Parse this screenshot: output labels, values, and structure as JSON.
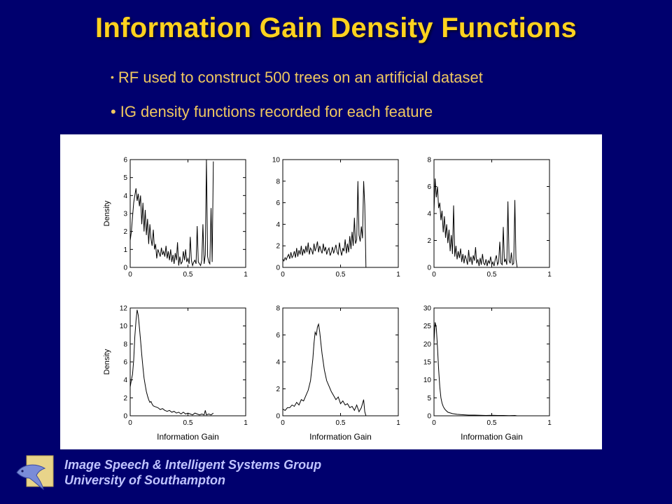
{
  "slide": {
    "title": "Information Gain Density Functions",
    "bullets": [
      "RF used to construct 500 trees on an artificial dataset",
      "IG density functions recorded for each feature"
    ],
    "bullet_symbol": "•",
    "footer": {
      "group": "Image Speech & Intelligent Systems Group",
      "university": "University of Southampton"
    },
    "colors": {
      "background": "#00006e",
      "title": "#ffd21e",
      "bullets": "#f0c860",
      "footer_text": "#c0c4ff",
      "plot_line": "#000000"
    }
  },
  "chart_data": [
    {
      "type": "line",
      "row": 1,
      "col": 1,
      "xlabel": "",
      "ylabel": "Density",
      "xlim": [
        0,
        1
      ],
      "ylim": [
        0,
        6
      ],
      "xticks": [
        "0",
        "0.5",
        "1"
      ],
      "yticks": [
        "0",
        "1",
        "2",
        "3",
        "4",
        "5",
        "6"
      ],
      "x": [
        0,
        0.01,
        0.02,
        0.03,
        0.04,
        0.05,
        0.06,
        0.07,
        0.08,
        0.09,
        0.1,
        0.11,
        0.12,
        0.13,
        0.14,
        0.15,
        0.16,
        0.17,
        0.18,
        0.19,
        0.2,
        0.21,
        0.22,
        0.23,
        0.24,
        0.25,
        0.26,
        0.27,
        0.28,
        0.29,
        0.3,
        0.31,
        0.32,
        0.33,
        0.34,
        0.35,
        0.36,
        0.37,
        0.38,
        0.39,
        0.4,
        0.41,
        0.42,
        0.43,
        0.44,
        0.45,
        0.46,
        0.47,
        0.48,
        0.49,
        0.5,
        0.51,
        0.52,
        0.53,
        0.54,
        0.55,
        0.56,
        0.57,
        0.58,
        0.59,
        0.6,
        0.61,
        0.62,
        0.63,
        0.64,
        0.65,
        0.66,
        0.67,
        0.68,
        0.69,
        0.7,
        0.71,
        0.72
      ],
      "y": [
        1.5,
        2.0,
        2.8,
        3.6,
        4.0,
        4.4,
        3.7,
        4.1,
        3.4,
        4.0,
        2.4,
        3.6,
        2.0,
        3.2,
        1.8,
        2.7,
        1.3,
        2.4,
        1.6,
        1.2,
        2.1,
        1.0,
        1.3,
        0.5,
        1.0,
        0.8,
        0.6,
        1.1,
        0.7,
        0.9,
        0.6,
        1.2,
        0.5,
        0.9,
        0.4,
        1.0,
        0.3,
        0.7,
        0.2,
        0.8,
        0.4,
        1.4,
        0.1,
        0.6,
        0.2,
        0.3,
        0.9,
        0.4,
        1.0,
        0.3,
        0.5,
        0.2,
        1.7,
        0.4,
        0.1,
        0.3,
        0.4,
        0.2,
        2.3,
        0.3,
        0.2,
        0.1,
        0.4,
        2.4,
        0.2,
        0.7,
        6.0,
        0.6,
        0.3,
        0.2,
        3.3,
        0.3,
        5.9
      ]
    },
    {
      "type": "line",
      "row": 1,
      "col": 2,
      "xlabel": "",
      "ylabel": "",
      "xlim": [
        0,
        1
      ],
      "ylim": [
        0,
        10
      ],
      "xticks": [
        "0",
        "0.5",
        "1"
      ],
      "yticks": [
        "0",
        "2",
        "4",
        "6",
        "8",
        "10"
      ],
      "x": [
        0,
        0.01,
        0.02,
        0.03,
        0.04,
        0.05,
        0.06,
        0.07,
        0.08,
        0.09,
        0.1,
        0.11,
        0.12,
        0.13,
        0.14,
        0.15,
        0.16,
        0.17,
        0.18,
        0.19,
        0.2,
        0.21,
        0.22,
        0.23,
        0.24,
        0.25,
        0.26,
        0.27,
        0.28,
        0.29,
        0.3,
        0.31,
        0.32,
        0.33,
        0.34,
        0.35,
        0.36,
        0.37,
        0.38,
        0.39,
        0.4,
        0.41,
        0.42,
        0.43,
        0.44,
        0.45,
        0.46,
        0.47,
        0.48,
        0.49,
        0.5,
        0.51,
        0.52,
        0.53,
        0.54,
        0.55,
        0.56,
        0.57,
        0.58,
        0.59,
        0.6,
        0.61,
        0.62,
        0.63,
        0.64,
        0.65,
        0.66,
        0.67,
        0.68,
        0.69,
        0.7,
        0.71,
        0.72
      ],
      "y": [
        0.8,
        0.6,
        0.9,
        0.7,
        1.0,
        1.2,
        0.8,
        1.4,
        0.9,
        1.1,
        1.5,
        0.9,
        1.8,
        1.0,
        1.6,
        1.2,
        2.0,
        1.1,
        1.7,
        1.3,
        2.0,
        1.4,
        2.3,
        1.2,
        1.8,
        1.6,
        1.2,
        2.2,
        1.5,
        1.9,
        2.4,
        1.4,
        2.0,
        1.6,
        1.3,
        2.2,
        1.5,
        1.9,
        1.2,
        1.6,
        1.8,
        1.1,
        1.4,
        1.9,
        1.3,
        1.7,
        2.1,
        1.4,
        1.2,
        2.3,
        1.6,
        1.1,
        1.8,
        1.5,
        2.6,
        1.3,
        2.2,
        1.4,
        2.9,
        1.7,
        3.3,
        2.0,
        4.6,
        2.2,
        2.6,
        8.0,
        3.0,
        2.4,
        3.8,
        2.7,
        8.0,
        5.8,
        0.0
      ]
    },
    {
      "type": "line",
      "row": 1,
      "col": 3,
      "xlabel": "",
      "ylabel": "",
      "xlim": [
        0,
        1
      ],
      "ylim": [
        0,
        8
      ],
      "xticks": [
        "0",
        "0.5",
        "1"
      ],
      "yticks": [
        "0",
        "2",
        "4",
        "6",
        "8"
      ],
      "x": [
        0,
        0.01,
        0.02,
        0.03,
        0.04,
        0.05,
        0.06,
        0.07,
        0.08,
        0.09,
        0.1,
        0.11,
        0.12,
        0.13,
        0.14,
        0.15,
        0.16,
        0.17,
        0.18,
        0.19,
        0.2,
        0.21,
        0.22,
        0.23,
        0.24,
        0.25,
        0.26,
        0.27,
        0.28,
        0.29,
        0.3,
        0.31,
        0.32,
        0.33,
        0.34,
        0.35,
        0.36,
        0.37,
        0.38,
        0.39,
        0.4,
        0.41,
        0.42,
        0.43,
        0.44,
        0.45,
        0.46,
        0.47,
        0.48,
        0.49,
        0.5,
        0.51,
        0.52,
        0.53,
        0.54,
        0.55,
        0.56,
        0.57,
        0.58,
        0.59,
        0.6,
        0.61,
        0.62,
        0.63,
        0.64,
        0.65,
        0.66,
        0.67,
        0.68,
        0.69,
        0.7,
        0.71,
        0.72
      ],
      "y": [
        4.1,
        6.6,
        5.2,
        6.0,
        4.4,
        4.8,
        3.5,
        4.2,
        2.6,
        3.8,
        2.2,
        3.2,
        1.8,
        2.8,
        1.2,
        2.4,
        1.0,
        4.6,
        0.8,
        1.6,
        0.6,
        1.2,
        0.7,
        1.4,
        0.4,
        1.0,
        0.3,
        0.9,
        0.6,
        0.2,
        1.3,
        0.4,
        0.8,
        0.2,
        0.9,
        0.5,
        1.5,
        0.3,
        0.6,
        0.1,
        0.7,
        0.2,
        1.0,
        0.3,
        0.2,
        0.6,
        0.1,
        0.5,
        0.3,
        0.8,
        0.2,
        0.4,
        0.1,
        0.6,
        0.9,
        0.2,
        0.4,
        1.9,
        0.3,
        0.2,
        3.0,
        0.4,
        0.6,
        0.2,
        4.9,
        0.5,
        0.3,
        1.1,
        0.2,
        0.3,
        5.0,
        0.6,
        0.0
      ]
    },
    {
      "type": "line",
      "row": 2,
      "col": 1,
      "xlabel": "Information Gain",
      "ylabel": "Density",
      "xlim": [
        0,
        1
      ],
      "ylim": [
        0,
        12
      ],
      "xticks": [
        "0",
        "0.5",
        "1"
      ],
      "yticks": [
        "0",
        "2",
        "4",
        "6",
        "8",
        "10",
        "12"
      ],
      "x": [
        0,
        0.01,
        0.02,
        0.03,
        0.04,
        0.05,
        0.06,
        0.07,
        0.08,
        0.09,
        0.1,
        0.11,
        0.12,
        0.13,
        0.14,
        0.15,
        0.16,
        0.17,
        0.18,
        0.19,
        0.2,
        0.22,
        0.24,
        0.26,
        0.28,
        0.3,
        0.32,
        0.34,
        0.36,
        0.38,
        0.4,
        0.42,
        0.44,
        0.46,
        0.48,
        0.5,
        0.52,
        0.54,
        0.56,
        0.58,
        0.6,
        0.62,
        0.64,
        0.65,
        0.66,
        0.68,
        0.7,
        0.72
      ],
      "y": [
        3.2,
        4.0,
        4.6,
        6.2,
        8.8,
        10.6,
        11.8,
        11.2,
        9.8,
        8.4,
        6.8,
        5.4,
        4.2,
        3.4,
        2.7,
        2.2,
        1.8,
        1.5,
        1.6,
        1.3,
        1.1,
        1.0,
        0.9,
        0.7,
        0.8,
        0.6,
        0.5,
        0.6,
        0.4,
        0.5,
        0.3,
        0.4,
        0.2,
        0.4,
        0.2,
        0.3,
        0.2,
        0.1,
        0.3,
        0.2,
        0.1,
        0.2,
        0.1,
        0.6,
        0.1,
        0.2,
        0.1,
        0.3
      ]
    },
    {
      "type": "line",
      "row": 2,
      "col": 2,
      "xlabel": "Information Gain",
      "ylabel": "",
      "xlim": [
        0,
        1
      ],
      "ylim": [
        0,
        8
      ],
      "xticks": [
        "0",
        "0.5",
        "1"
      ],
      "yticks": [
        "0",
        "2",
        "4",
        "6",
        "8"
      ],
      "x": [
        0,
        0.02,
        0.04,
        0.06,
        0.08,
        0.1,
        0.12,
        0.14,
        0.16,
        0.18,
        0.2,
        0.22,
        0.24,
        0.26,
        0.27,
        0.28,
        0.29,
        0.3,
        0.31,
        0.32,
        0.33,
        0.34,
        0.36,
        0.38,
        0.4,
        0.42,
        0.44,
        0.46,
        0.48,
        0.5,
        0.52,
        0.54,
        0.56,
        0.58,
        0.6,
        0.62,
        0.64,
        0.66,
        0.68,
        0.7,
        0.71,
        0.72
      ],
      "y": [
        0.5,
        0.4,
        0.6,
        0.6,
        0.8,
        0.7,
        1.0,
        0.8,
        1.2,
        1.1,
        1.5,
        1.9,
        2.6,
        4.2,
        5.4,
        6.2,
        6.0,
        6.6,
        6.8,
        6.2,
        5.4,
        4.6,
        3.4,
        2.6,
        2.2,
        1.8,
        1.5,
        1.2,
        1.4,
        0.9,
        1.1,
        0.8,
        0.9,
        0.6,
        0.7,
        0.4,
        0.8,
        0.3,
        0.6,
        1.2,
        0.3,
        0.0
      ]
    },
    {
      "type": "line",
      "row": 2,
      "col": 3,
      "xlabel": "Information Gain",
      "ylabel": "",
      "xlim": [
        0,
        1
      ],
      "ylim": [
        0,
        30
      ],
      "xticks": [
        "0",
        "0.5",
        "1"
      ],
      "yticks": [
        "0",
        "5",
        "10",
        "15",
        "20",
        "25",
        "30"
      ],
      "x": [
        0,
        0.01,
        0.02,
        0.03,
        0.04,
        0.05,
        0.06,
        0.07,
        0.08,
        0.09,
        0.1,
        0.12,
        0.14,
        0.16,
        0.18,
        0.2,
        0.25,
        0.3,
        0.35,
        0.4,
        0.45,
        0.5,
        0.55,
        0.6,
        0.65,
        0.7,
        0.72
      ],
      "y": [
        20.5,
        26.0,
        24.5,
        19.0,
        13.0,
        8.0,
        5.0,
        3.5,
        2.6,
        2.0,
        1.6,
        1.0,
        0.8,
        0.6,
        0.5,
        0.4,
        0.3,
        0.2,
        0.2,
        0.15,
        0.1,
        0.15,
        0.1,
        0.1,
        0.05,
        0.1,
        0.0
      ]
    }
  ]
}
